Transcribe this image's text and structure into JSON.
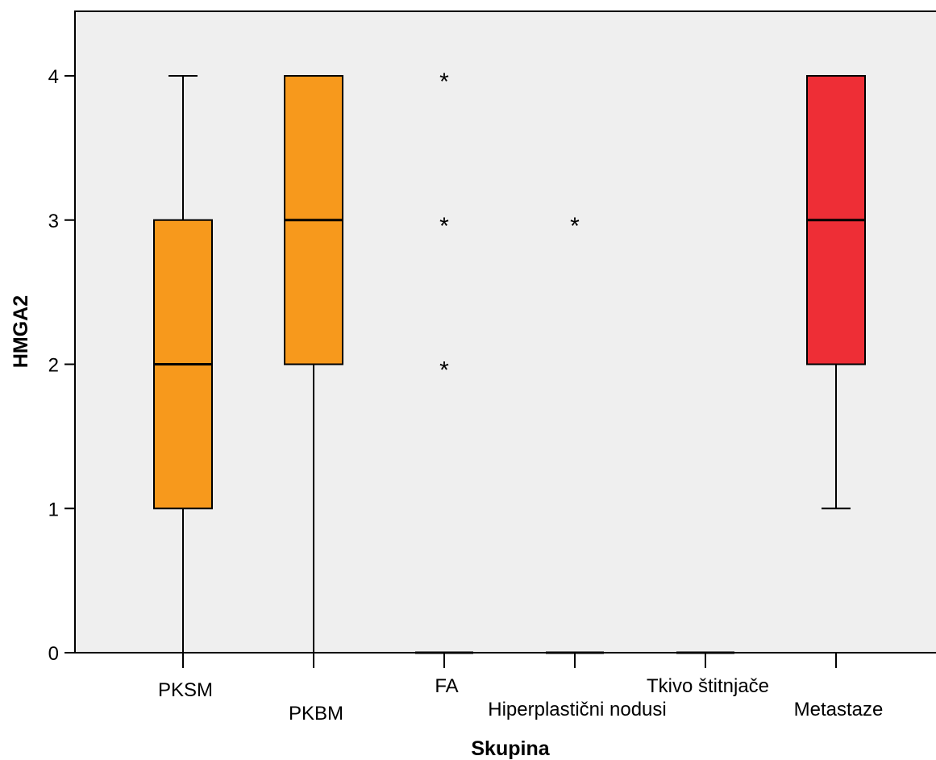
{
  "chart_data": {
    "type": "box",
    "xlabel": "Skupina",
    "ylabel": "HMGA2",
    "ylim": [
      0,
      4
    ],
    "yticks": [
      "0",
      "1",
      "2",
      "3",
      "4"
    ],
    "outlier_marker": "*",
    "colors": {
      "plot_bg": "#efefef",
      "box_orange": "#f7991c",
      "box_red": "#ee2e36",
      "line": "#000000"
    },
    "categories": [
      "PKSM",
      "PKBM",
      "FA",
      "Hiperplastični nodusi",
      "Tkivo štitnjače",
      "Metastaze"
    ],
    "boxes": [
      {
        "category": "PKSM",
        "min": 0,
        "q1": 1,
        "median": 2,
        "q3": 3,
        "max": 4,
        "color": "#f7991c",
        "outliers": []
      },
      {
        "category": "PKBM",
        "min": 0,
        "q1": 2,
        "median": 3,
        "q3": 4,
        "max": 4,
        "color": "#f7991c",
        "outliers": []
      },
      {
        "category": "FA",
        "min": 0,
        "q1": 0,
        "median": 0,
        "q3": 0,
        "max": 0,
        "color": "#f7991c",
        "outliers": [
          4,
          3,
          2
        ]
      },
      {
        "category": "Hiperplastični nodusi",
        "min": 0,
        "q1": 0,
        "median": 0,
        "q3": 0,
        "max": 0,
        "color": "#f7991c",
        "outliers": [
          3
        ]
      },
      {
        "category": "Tkivo štitnjače",
        "min": 0,
        "q1": 0,
        "median": 0,
        "q3": 0,
        "max": 0,
        "color": "#f7991c",
        "outliers": []
      },
      {
        "category": "Metastaze",
        "min": 1,
        "q1": 2,
        "median": 3,
        "q3": 4,
        "max": 4,
        "color": "#ee2e36",
        "outliers": []
      }
    ]
  }
}
